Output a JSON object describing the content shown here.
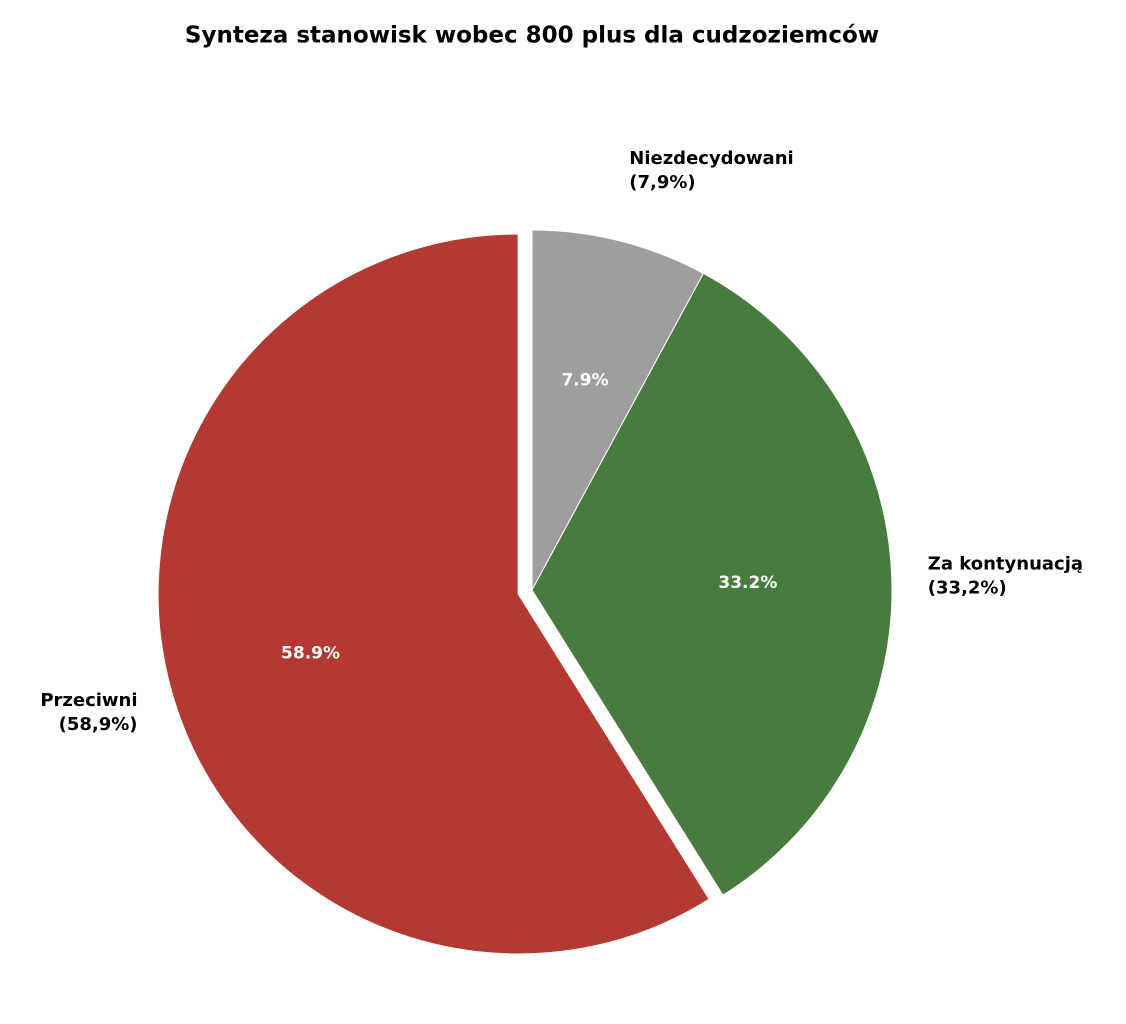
{
  "chart_data": {
    "type": "pie",
    "title": "Synteza stanowisk wobec 800 plus dla cudzoziemców",
    "categories": [
      "Niezdecydowani",
      "Za kontynuacją",
      "Przeciwni"
    ],
    "values": [
      7.9,
      33.2,
      58.9
    ],
    "value_labels": [
      "7.9%",
      "33.2%",
      "58.9%"
    ],
    "outer_value_labels": [
      "(7,9%)",
      "(33,2%)",
      "(58,9%)"
    ],
    "colors": [
      "#9e9e9e",
      "#487b3e",
      "#b53933"
    ],
    "explode": [
      0,
      0,
      0.04
    ]
  }
}
